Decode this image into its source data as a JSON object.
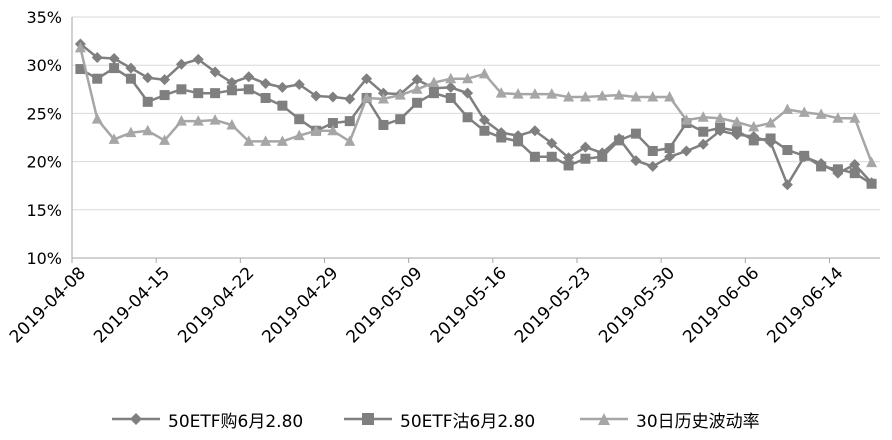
{
  "chart_data": {
    "type": "line",
    "title": "",
    "xlabel": "",
    "ylabel": "",
    "ylim": [
      0.1,
      0.35
    ],
    "y_ticks": [
      "10%",
      "15%",
      "20%",
      "25%",
      "30%",
      "35%"
    ],
    "x_tick_labels": [
      "2019-04-08",
      "2019-04-15",
      "2019-04-22",
      "2019-04-29",
      "2019-05-09",
      "2019-05-16",
      "2019-05-23",
      "2019-05-30",
      "2019-06-06",
      "2019-06-14"
    ],
    "x_tick_indices": [
      0,
      5,
      10,
      15,
      20,
      25,
      30,
      35,
      40,
      45
    ],
    "grid": true,
    "legend_position": "bottom",
    "series": [
      {
        "name": "50ETF购6月2.80",
        "marker": "diamond",
        "color": "#7f7f7f",
        "values": [
          0.322,
          0.308,
          0.307,
          0.297,
          0.287,
          0.285,
          0.301,
          0.306,
          0.293,
          0.282,
          0.288,
          0.281,
          0.277,
          0.28,
          0.268,
          0.267,
          0.265,
          0.286,
          0.271,
          0.27,
          0.285,
          0.276,
          0.277,
          0.271,
          0.243,
          0.23,
          0.227,
          0.232,
          0.219,
          0.204,
          0.215,
          0.209,
          0.224,
          0.201,
          0.195,
          0.205,
          0.211,
          0.218,
          0.232,
          0.228,
          0.226,
          0.22,
          0.176,
          0.205,
          0.198,
          0.188,
          0.197,
          0.178
        ]
      },
      {
        "name": "50ETF沽6月2.80",
        "marker": "square",
        "color": "#7f7f7f",
        "values": [
          0.296,
          0.286,
          0.297,
          0.286,
          0.262,
          0.269,
          0.275,
          0.271,
          0.271,
          0.274,
          0.275,
          0.266,
          0.258,
          0.244,
          0.232,
          0.24,
          0.242,
          0.266,
          0.238,
          0.244,
          0.261,
          0.271,
          0.266,
          0.246,
          0.232,
          0.225,
          0.221,
          0.205,
          0.205,
          0.196,
          0.203,
          0.205,
          0.222,
          0.229,
          0.211,
          0.214,
          0.24,
          0.231,
          0.235,
          0.232,
          0.222,
          0.224,
          0.212,
          0.206,
          0.195,
          0.192,
          0.188,
          0.177
        ]
      },
      {
        "name": "30日历史波动率",
        "marker": "triangle",
        "color": "#a6a6a6",
        "values": [
          0.318,
          0.244,
          0.223,
          0.23,
          0.232,
          0.222,
          0.242,
          0.242,
          0.243,
          0.238,
          0.221,
          0.221,
          0.221,
          0.227,
          0.232,
          0.232,
          0.221,
          0.266,
          0.265,
          0.269,
          0.275,
          0.282,
          0.286,
          0.286,
          0.291,
          0.271,
          0.27,
          0.27,
          0.27,
          0.267,
          0.267,
          0.268,
          0.269,
          0.267,
          0.267,
          0.267,
          0.243,
          0.246,
          0.245,
          0.241,
          0.236,
          0.24,
          0.254,
          0.251,
          0.249,
          0.245,
          0.245,
          0.199
        ]
      }
    ]
  }
}
